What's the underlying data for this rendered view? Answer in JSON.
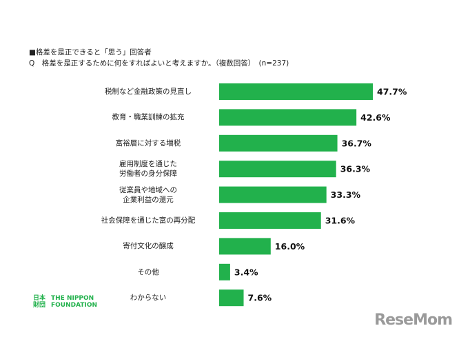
{
  "chart_data": {
    "type": "hbar",
    "subtitle": "■格差を是正できると「思う」回答者",
    "title": "Q　格差を是正するために何をすればよいと考えますか。（複数回答）　(n=237)",
    "categories": [
      "税制など金融政策の見直し",
      "教育・職業訓練の拡充",
      "富裕層に対する増税",
      "雇用制度を通じた\n労働者の身分保障",
      "従業員や地域への\n企業利益の還元",
      "社会保障を通じた富の再分配",
      "寄付文化の醸成",
      "その他",
      "わからない"
    ],
    "values": [
      47.7,
      42.6,
      36.7,
      36.3,
      33.3,
      31.6,
      16.0,
      3.4,
      7.6
    ],
    "value_labels": [
      "47.7%",
      "42.6%",
      "36.7%",
      "36.3%",
      "33.3%",
      "31.6%",
      "16.0%",
      "3.4%",
      "7.6%"
    ],
    "color": "#22b14c"
  },
  "logo": {
    "mark": "日本\n財団",
    "name": "THE NIPPON\nFOUNDATION"
  },
  "watermark": "ReseMom"
}
